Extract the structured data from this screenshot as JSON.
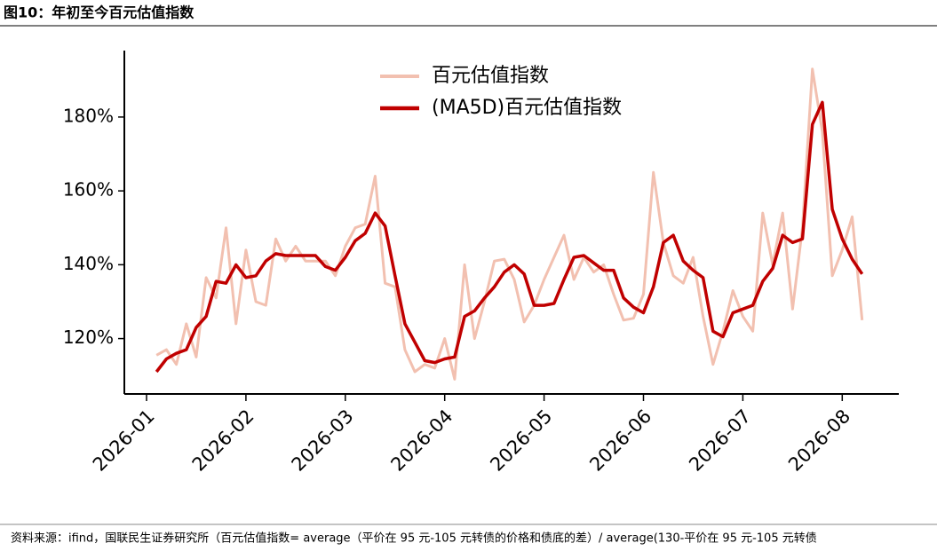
{
  "chart_data": {
    "type": "line",
    "title": "图10：年初至今百元估值指数",
    "source": "资料来源：ifind，国联民生证券研究所（百元估值指数= average（平价在 95 元-105 元转债的价格和债底的差）/ average(130-平价在 95 元-105 元转债",
    "categories": [
      "2026-01",
      null,
      null,
      null,
      null,
      null,
      null,
      null,
      null,
      null,
      "2026-02",
      null,
      null,
      null,
      null,
      null,
      null,
      null,
      null,
      null,
      "2026-03",
      null,
      null,
      null,
      null,
      null,
      null,
      null,
      null,
      null,
      "2026-04",
      null,
      null,
      null,
      null,
      null,
      null,
      null,
      null,
      null,
      "2026-05",
      null,
      null,
      null,
      null,
      null,
      null,
      null,
      null,
      null,
      "2026-06",
      null,
      null,
      null,
      null,
      null,
      null,
      null,
      null,
      null,
      "2026-07",
      null,
      null,
      null,
      null,
      null,
      null,
      null,
      null,
      null,
      "2026-08",
      null,
      null
    ],
    "series": [
      {
        "name": "百元估值指数",
        "color": "#f2c0b0",
        "values": [
          null,
          115.5,
          117,
          113,
          124,
          115,
          136.5,
          131,
          150,
          124,
          144,
          130,
          129,
          147,
          141,
          145,
          141,
          141,
          141,
          137,
          145,
          150,
          151,
          164,
          135,
          134,
          117,
          111,
          113,
          112,
          120,
          109,
          140,
          120,
          130,
          141,
          141.5,
          136,
          124.5,
          129,
          136,
          142,
          148,
          136,
          142,
          138,
          140,
          132,
          125,
          125.5,
          132,
          165,
          146,
          137,
          135,
          142,
          126,
          113,
          122,
          133,
          126,
          122,
          154,
          140,
          154,
          128,
          150,
          193,
          176,
          137,
          144,
          153,
          125
        ]
      },
      {
        "name": "(MA5D)百元估值指数",
        "color": "#c00000",
        "values": [
          null,
          111,
          114.5,
          116,
          117,
          123,
          126,
          135.5,
          135,
          140,
          136.5,
          137,
          141,
          143,
          142.5,
          142.5,
          142.5,
          142.5,
          139.5,
          138.5,
          142,
          146.5,
          148.5,
          154,
          150.5,
          137,
          124,
          119,
          114,
          113.5,
          114.5,
          115,
          126,
          127.5,
          131,
          134,
          138,
          140,
          137.5,
          129,
          129,
          129.5,
          136,
          142,
          142.5,
          140.5,
          138.5,
          138.5,
          131,
          128.5,
          127,
          134,
          146,
          148,
          141,
          138.5,
          136.5,
          122,
          120.5,
          127,
          128,
          129,
          135.5,
          139,
          148,
          146,
          147,
          178,
          184,
          155,
          147,
          141.5,
          137.5
        ]
      }
    ],
    "ylim": [
      105,
      198
    ],
    "yticks": [
      {
        "value": 120,
        "label": "120%"
      },
      {
        "value": 140,
        "label": "140%"
      },
      {
        "value": 160,
        "label": "160%"
      },
      {
        "value": 180,
        "label": "180%"
      }
    ],
    "legend": "upper center"
  }
}
